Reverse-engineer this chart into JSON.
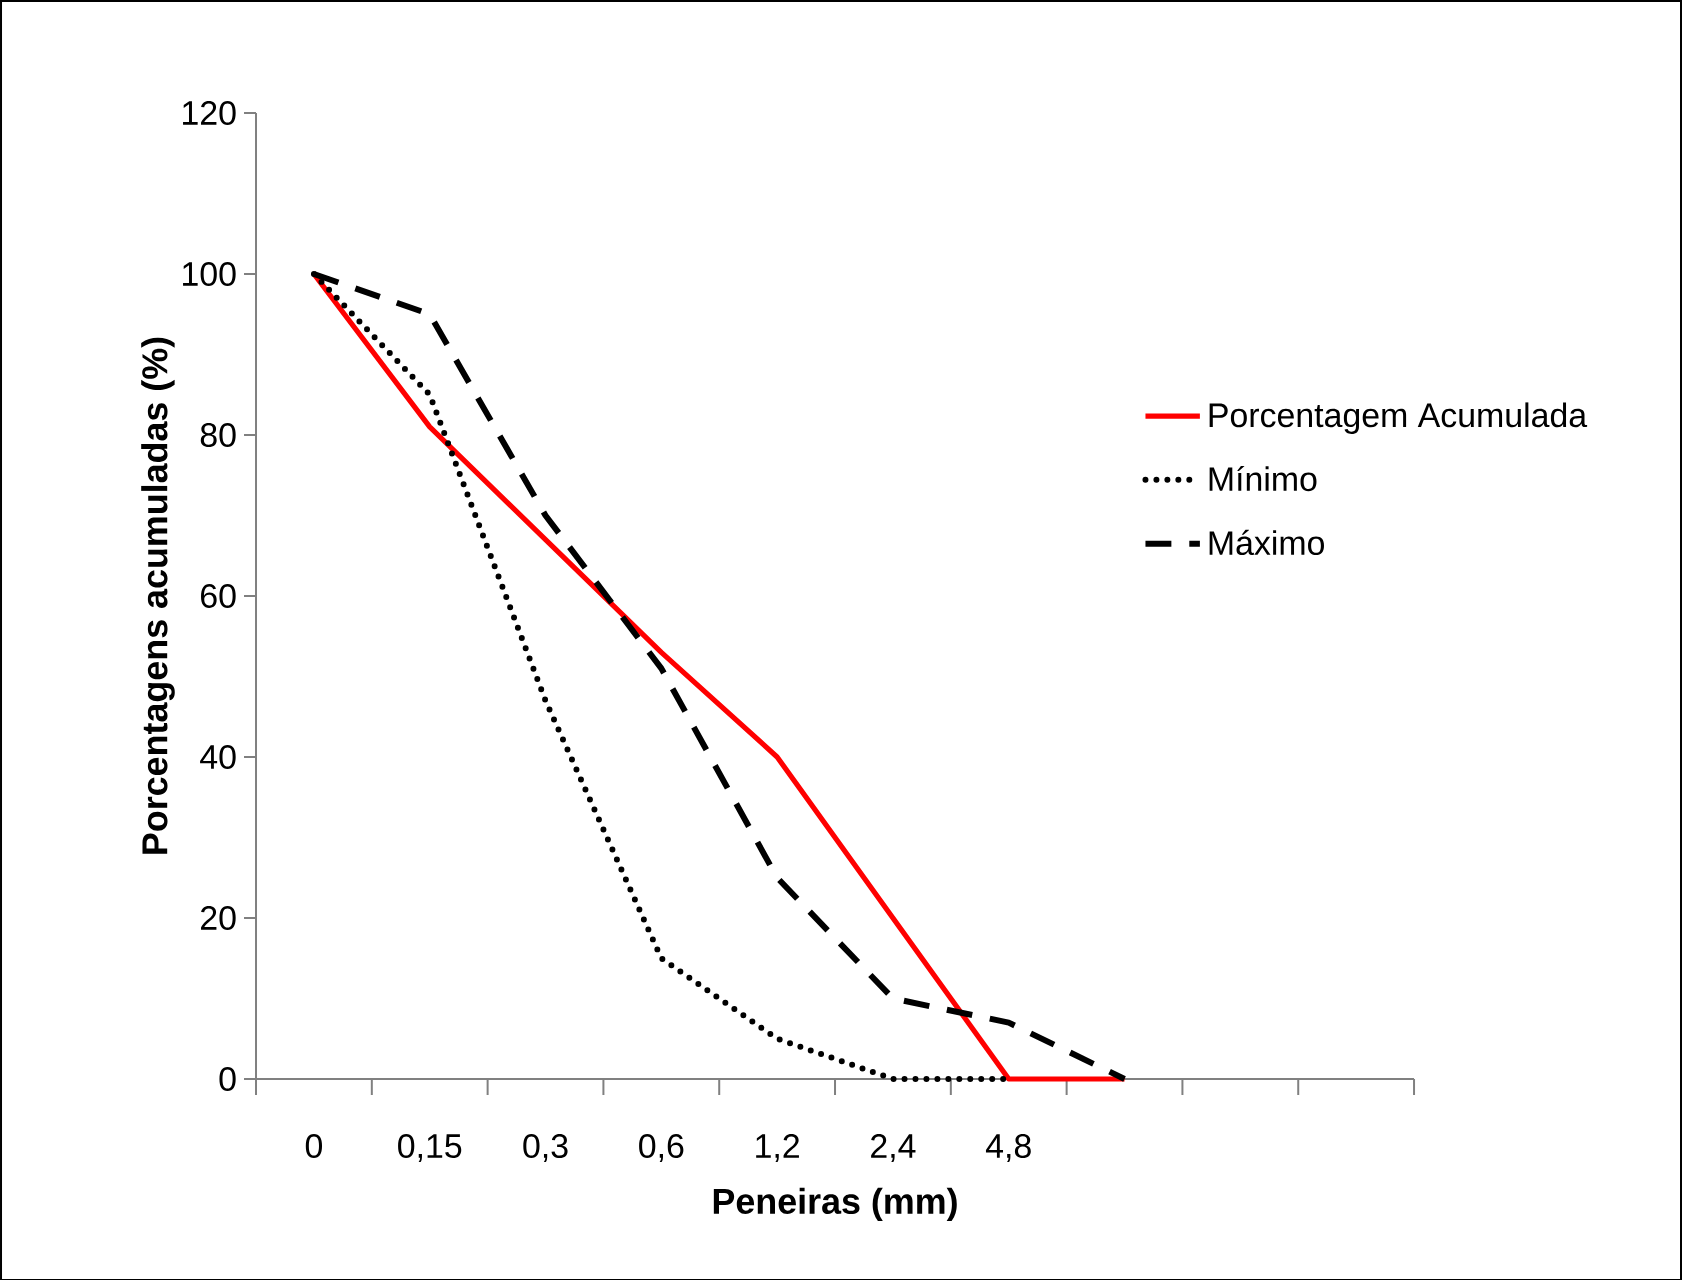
{
  "chart_data": {
    "type": "line",
    "xlabel": "Peneiras (mm)",
    "ylabel": "Porcentagens acumuladas (%)",
    "categories": [
      "0",
      "0,15",
      "0,3",
      "0,6",
      "1,2",
      "2,4",
      "4,8",
      null,
      null,
      null
    ],
    "series": [
      {
        "name": "Porcentagem Acumulada",
        "color": "#ff0000",
        "line_style": "solid",
        "values": [
          100,
          81,
          67,
          53,
          40,
          20,
          0,
          0,
          null,
          null
        ]
      },
      {
        "name": "Mínimo",
        "color": "#000000",
        "line_style": "dotted",
        "values": [
          100,
          85,
          47,
          15,
          5,
          0,
          0,
          null,
          null,
          null
        ]
      },
      {
        "name": "Máximo",
        "color": "#000000",
        "line_style": "dashed",
        "values": [
          100,
          95,
          70,
          51,
          25,
          10,
          7,
          0,
          null,
          null
        ]
      }
    ],
    "ylim": [
      0,
      120
    ],
    "yticks": [
      0,
      20,
      40,
      60,
      80,
      100,
      120
    ],
    "grid": false,
    "legend": "right",
    "marker": "none"
  }
}
